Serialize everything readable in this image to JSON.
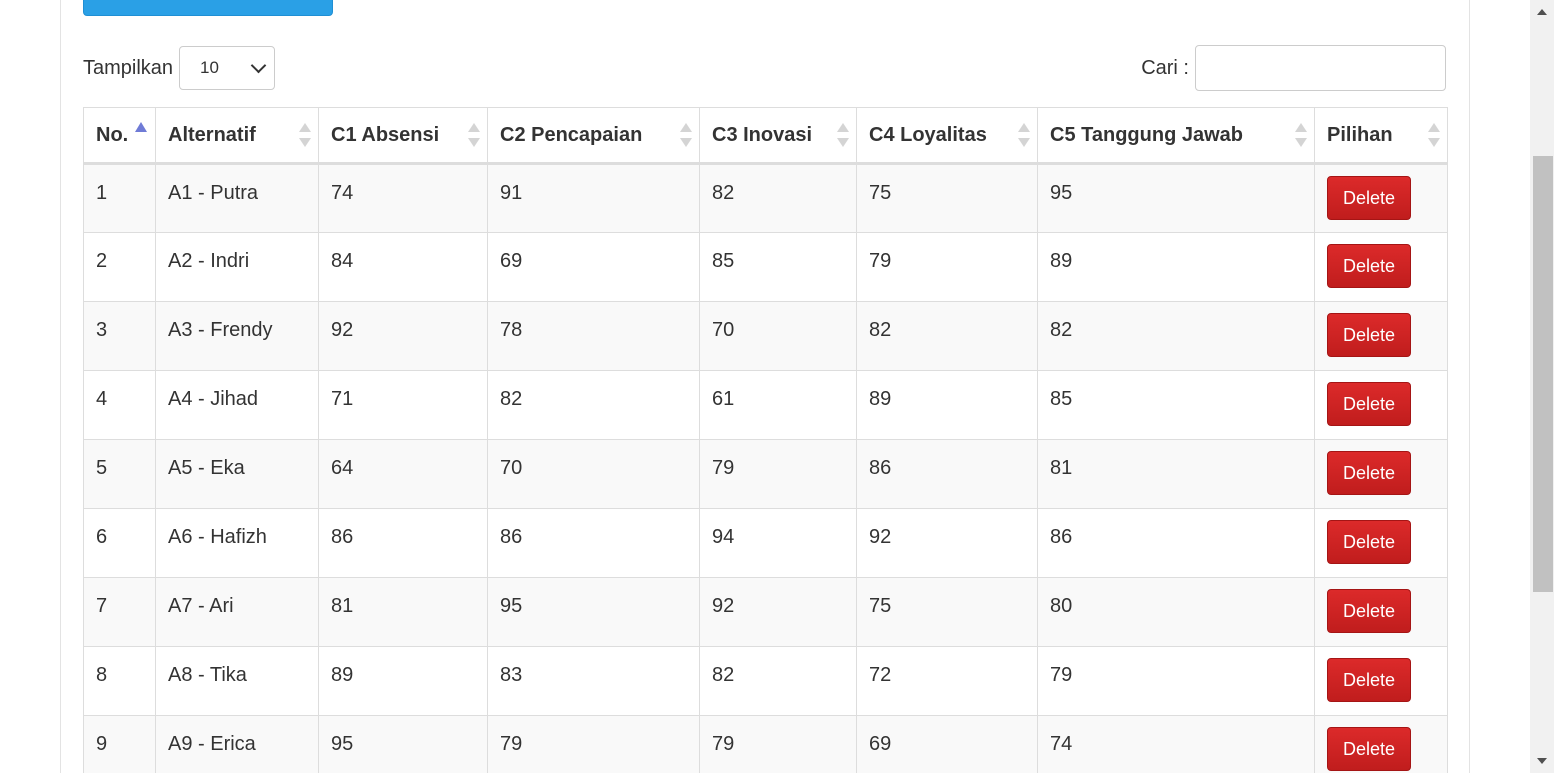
{
  "controls": {
    "length_label": "Tampilkan",
    "length_value": "10",
    "search_label": "Cari :",
    "search_value": "",
    "search_placeholder": ""
  },
  "table": {
    "headers": [
      "No.",
      "Alternatif",
      "C1 Absensi",
      "C2 Pencapaian",
      "C3 Inovasi",
      "C4 Loyalitas",
      "C5 Tanggung Jawab",
      "Pilihan"
    ],
    "sorted_column": "No.",
    "sort_direction": "ascending",
    "delete_label": "Delete",
    "rows": [
      {
        "no": "1",
        "alt": "A1 - Putra",
        "c1": "74",
        "c2": "91",
        "c3": "82",
        "c4": "75",
        "c5": "95"
      },
      {
        "no": "2",
        "alt": "A2 - Indri",
        "c1": "84",
        "c2": "69",
        "c3": "85",
        "c4": "79",
        "c5": "89"
      },
      {
        "no": "3",
        "alt": "A3 - Frendy",
        "c1": "92",
        "c2": "78",
        "c3": "70",
        "c4": "82",
        "c5": "82"
      },
      {
        "no": "4",
        "alt": "A4 - Jihad",
        "c1": "71",
        "c2": "82",
        "c3": "61",
        "c4": "89",
        "c5": "85"
      },
      {
        "no": "5",
        "alt": "A5 - Eka",
        "c1": "64",
        "c2": "70",
        "c3": "79",
        "c4": "86",
        "c5": "81"
      },
      {
        "no": "6",
        "alt": "A6 - Hafizh",
        "c1": "86",
        "c2": "86",
        "c3": "94",
        "c4": "92",
        "c5": "86"
      },
      {
        "no": "7",
        "alt": "A7 - Ari",
        "c1": "81",
        "c2": "95",
        "c3": "92",
        "c4": "75",
        "c5": "80"
      },
      {
        "no": "8",
        "alt": "A8 - Tika",
        "c1": "89",
        "c2": "83",
        "c3": "82",
        "c4": "72",
        "c5": "79"
      },
      {
        "no": "9",
        "alt": "A9 - Erica",
        "c1": "95",
        "c2": "79",
        "c3": "79",
        "c4": "69",
        "c5": "74"
      }
    ]
  },
  "colors": {
    "primary_button": "#2aa0e6",
    "danger_button": "#c9211e",
    "sort_active": "#6f7bd6",
    "sort_inactive": "#d4d4d4"
  }
}
